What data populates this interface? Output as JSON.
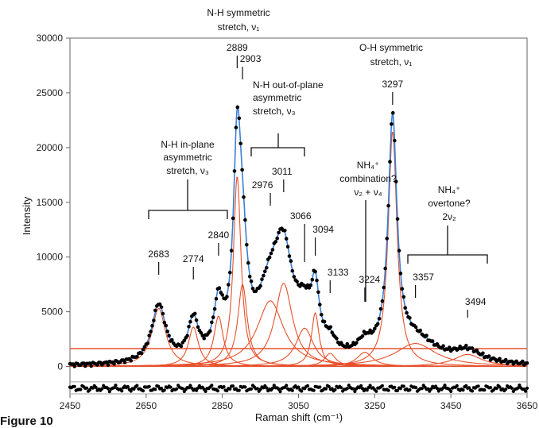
{
  "chart_data": {
    "type": "line",
    "xlabel": "Raman shift (cm⁻¹)",
    "ylabel": "Intensity",
    "xlim": [
      2450,
      3650
    ],
    "ylim": [
      -2500,
      30000
    ],
    "xticks": [
      2450,
      2650,
      2850,
      3050,
      3250,
      3450,
      3650
    ],
    "yticks": [
      0,
      5000,
      10000,
      15000,
      20000,
      25000,
      30000
    ],
    "grid": false,
    "legend": "none",
    "colors": {
      "data": "#000000",
      "fit": "#3a7fd5",
      "components": "#e8502b",
      "residual_band": "#aaaaaa"
    },
    "components": [
      {
        "center": 2683,
        "amplitude": 5300,
        "width": 22
      },
      {
        "center": 2774,
        "amplitude": 3600,
        "width": 16
      },
      {
        "center": 2840,
        "amplitude": 4600,
        "width": 15
      },
      {
        "center": 2889,
        "amplitude": 17400,
        "width": 12
      },
      {
        "center": 2903,
        "amplitude": 7500,
        "width": 15
      },
      {
        "center": 2976,
        "amplitude": 6000,
        "width": 42
      },
      {
        "center": 3011,
        "amplitude": 7600,
        "width": 28
      },
      {
        "center": 3066,
        "amplitude": 3500,
        "width": 28
      },
      {
        "center": 3094,
        "amplitude": 4900,
        "width": 12
      },
      {
        "center": 3133,
        "amplitude": 1200,
        "width": 18
      },
      {
        "center": 3224,
        "amplitude": 1300,
        "width": 25
      },
      {
        "center": 3297,
        "amplitude": 21500,
        "width": 14
      },
      {
        "center": 3357,
        "amplitude": 2100,
        "width": 65
      },
      {
        "center": 3494,
        "amplitude": 1100,
        "width": 45
      }
    ],
    "residual_offset": -2000,
    "residual_band": [
      -1400,
      -2500
    ],
    "peak_labels": [
      "2683",
      "2774",
      "2840",
      "2889",
      "2903",
      "2976",
      "3011",
      "3066",
      "3094",
      "3133",
      "3224",
      "3297",
      "3357",
      "3494"
    ],
    "annotations": {
      "nh_sym": [
        "N-H symmetric",
        "stretch, ν₁"
      ],
      "nh_oop": [
        "N-H out-of-plane",
        "asymmetric",
        "stretch, ν₃"
      ],
      "nh_inplane": [
        "N-H in-plane",
        "asymmetric",
        "stretch, ν₃"
      ],
      "oh_sym": [
        "O-H symmetric",
        "stretch, ν₁"
      ],
      "combination": [
        "NH₄⁺",
        "combination?",
        "ν₂ + ν₄"
      ],
      "overtone": [
        "NH₄⁺",
        "overtone?",
        "2ν₂"
      ]
    }
  },
  "caption": "Figure 10"
}
